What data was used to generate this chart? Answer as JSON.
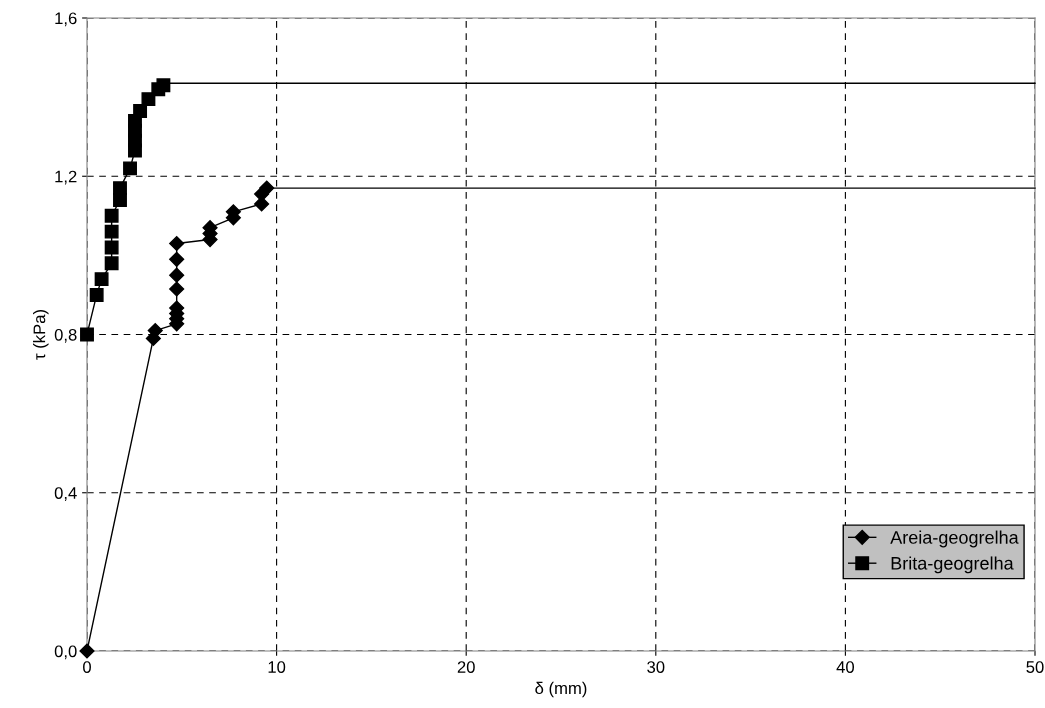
{
  "chart_data": {
    "type": "line",
    "xlabel": "δ (mm)",
    "ylabel": "τ (kPa)",
    "xlim": [
      0,
      50
    ],
    "xticks": [
      0,
      10,
      20,
      30,
      40,
      50
    ],
    "ylim": [
      0,
      1.6
    ],
    "yticks": [
      {
        "value": 0,
        "label": "0,0"
      },
      {
        "value": 0.4,
        "label": "0,4"
      },
      {
        "value": 0.8,
        "label": "0,8"
      },
      {
        "value": 1.2,
        "label": "1,2"
      },
      {
        "value": 1.6,
        "label": "1,6"
      }
    ],
    "grid": true,
    "legend": "bottom right",
    "line_style": "solid",
    "series": [
      {
        "name": "Areia-geogrelha",
        "color": "#000000",
        "marker": "diamond",
        "x": [
          0,
          3.5,
          3.6,
          4.73,
          4.73,
          4.73,
          4.73,
          4.73,
          4.73,
          4.73,
          4.73,
          6.49,
          6.49,
          6.49,
          7.72,
          7.72,
          9.21,
          9.21,
          9.48
        ],
        "values": [
          0,
          0.79,
          0.81,
          0.827,
          0.84,
          0.853,
          0.867,
          0.915,
          0.95,
          0.99,
          1.03,
          1.04,
          1.055,
          1.07,
          1.095,
          1.11,
          1.13,
          1.155,
          1.17
        ]
      },
      {
        "name": "Brita-geogrelha",
        "color": "#000000",
        "marker": "square",
        "x": [
          0,
          0.51,
          0.77,
          1.3,
          1.3,
          1.3,
          1.3,
          1.74,
          1.74,
          2.27,
          2.53,
          2.53,
          2.53,
          2.53,
          2.8,
          3.24,
          3.76,
          4.03
        ],
        "values": [
          0.8,
          0.9,
          0.94,
          0.98,
          1.02,
          1.06,
          1.1,
          1.14,
          1.17,
          1.22,
          1.265,
          1.29,
          1.315,
          1.34,
          1.365,
          1.395,
          1.42,
          1.43
        ]
      },
      {
        "color": "#000000",
        "marker": "none",
        "x": [
          9.48,
          50
        ],
        "values": [
          1.17,
          1.17
        ]
      },
      {
        "color": "#000000",
        "marker": "none",
        "x": [
          4.03,
          50
        ],
        "values": [
          1.435,
          1.435
        ]
      }
    ]
  }
}
